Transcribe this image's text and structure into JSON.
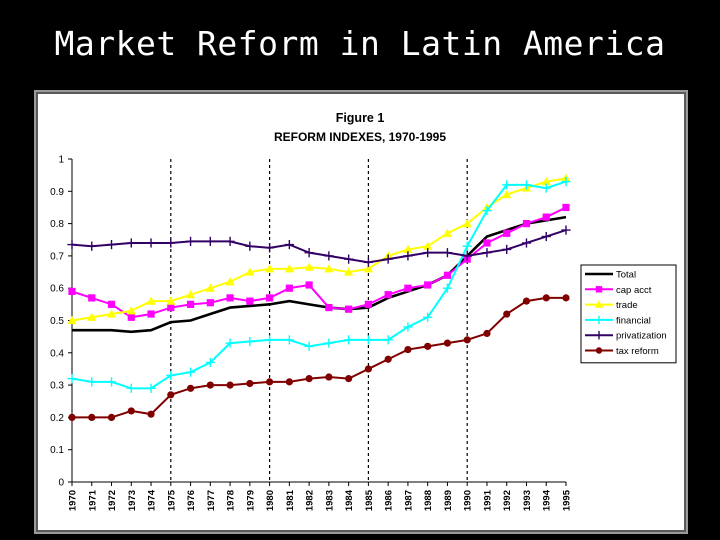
{
  "slide": {
    "title": "Market Reform in Latin America"
  },
  "chart_data": {
    "type": "line",
    "title": "Figure 1",
    "subtitle": "REFORM INDEXES, 1970-1995",
    "xlabel": "",
    "ylabel": "",
    "ylim": [
      0,
      1
    ],
    "yticks": [
      "0",
      "0.1",
      "0.2",
      "0.3",
      "0.4",
      "0.5",
      "0.6",
      "0.7",
      "0.8",
      "0.9",
      "1"
    ],
    "categories": [
      "1970",
      "1971",
      "1972",
      "1973",
      "1974",
      "1975",
      "1976",
      "1977",
      "1978",
      "1979",
      "1980",
      "1981",
      "1982",
      "1983",
      "1984",
      "1985",
      "1986",
      "1987",
      "1988",
      "1989",
      "1990",
      "1991",
      "1992",
      "1993",
      "1994",
      "1995"
    ],
    "vlines": [
      "1975",
      "1980",
      "1985",
      "1990"
    ],
    "legend_position": "right",
    "series": [
      {
        "name": "Total",
        "color": "#000000",
        "marker": "none",
        "values": [
          0.47,
          0.47,
          0.47,
          0.465,
          0.47,
          0.495,
          0.5,
          0.52,
          0.54,
          0.545,
          0.55,
          0.56,
          0.55,
          0.54,
          0.535,
          0.54,
          0.57,
          0.59,
          0.61,
          0.64,
          0.7,
          0.76,
          0.78,
          0.8,
          0.81,
          0.82
        ]
      },
      {
        "name": "cap acct",
        "color": "#ff00ff",
        "marker": "square",
        "values": [
          0.59,
          0.57,
          0.55,
          0.51,
          0.52,
          0.54,
          0.55,
          0.555,
          0.57,
          0.56,
          0.57,
          0.6,
          0.61,
          0.54,
          0.535,
          0.55,
          0.58,
          0.6,
          0.61,
          0.64,
          0.69,
          0.74,
          0.77,
          0.8,
          0.82,
          0.85
        ]
      },
      {
        "name": "trade",
        "color": "#ffff00",
        "marker": "triangle",
        "values": [
          0.5,
          0.51,
          0.52,
          0.53,
          0.56,
          0.56,
          0.58,
          0.6,
          0.62,
          0.65,
          0.66,
          0.66,
          0.665,
          0.66,
          0.65,
          0.66,
          0.7,
          0.72,
          0.73,
          0.77,
          0.8,
          0.85,
          0.89,
          0.91,
          0.93,
          0.94
        ]
      },
      {
        "name": "financial",
        "color": "#00ffff",
        "marker": "plus",
        "values": [
          0.32,
          0.31,
          0.31,
          0.29,
          0.29,
          0.33,
          0.34,
          0.37,
          0.43,
          0.435,
          0.44,
          0.44,
          0.42,
          0.43,
          0.44,
          0.44,
          0.44,
          0.48,
          0.51,
          0.6,
          0.73,
          0.84,
          0.92,
          0.92,
          0.91,
          0.93
        ]
      },
      {
        "name": "privatization",
        "color": "#330066",
        "marker": "plus",
        "values": [
          0.735,
          0.73,
          0.735,
          0.74,
          0.74,
          0.74,
          0.745,
          0.745,
          0.745,
          0.73,
          0.725,
          0.735,
          0.71,
          0.7,
          0.69,
          0.68,
          0.69,
          0.7,
          0.71,
          0.71,
          0.7,
          0.71,
          0.72,
          0.74,
          0.76,
          0.78
        ]
      },
      {
        "name": "tax reform",
        "color": "#800000",
        "marker": "circle",
        "values": [
          0.2,
          0.2,
          0.2,
          0.22,
          0.21,
          0.27,
          0.29,
          0.3,
          0.3,
          0.305,
          0.31,
          0.31,
          0.32,
          0.325,
          0.32,
          0.35,
          0.38,
          0.41,
          0.42,
          0.43,
          0.44,
          0.46,
          0.52,
          0.56,
          0.57,
          0.57
        ]
      }
    ]
  }
}
